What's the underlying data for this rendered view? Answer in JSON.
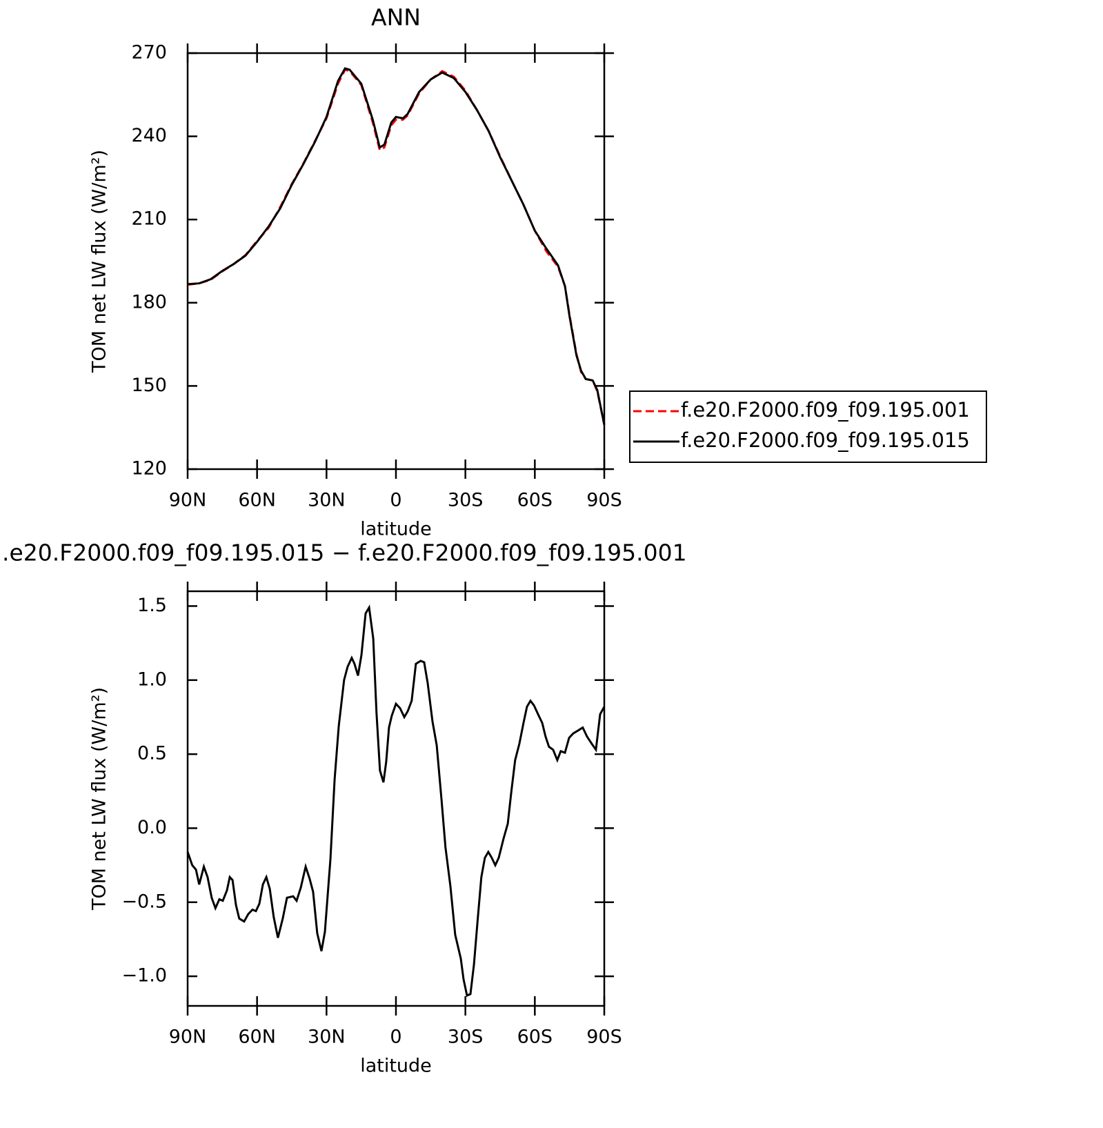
{
  "chart_data": [
    {
      "type": "line",
      "title": "ANN",
      "xlabel": "latitude",
      "ylabel": "TOM net LW flux (W/m²)",
      "x": [
        90,
        85,
        80,
        75,
        70,
        65,
        60,
        55,
        50,
        45,
        40,
        35,
        30,
        25,
        22,
        20,
        15,
        10,
        7,
        5,
        2,
        0,
        -3,
        -5,
        -10,
        -15,
        -20,
        -25,
        -30,
        -35,
        -40,
        -45,
        -50,
        -55,
        -60,
        -65,
        -70,
        -73,
        -75,
        -78,
        -80,
        -82,
        -85,
        -87,
        -90
      ],
      "series": [
        {
          "name": "f.e20.F2000.f09_f09.195.001",
          "color": "#ff0000",
          "dash": true,
          "values": [
            186.5,
            187,
            188.3,
            191.3,
            194,
            197.2,
            202.3,
            207,
            214.5,
            222.8,
            230.2,
            238.3,
            246.5,
            259,
            264,
            263.5,
            258.5,
            245,
            235,
            236,
            244,
            246,
            246,
            247.5,
            255.5,
            260.5,
            263.5,
            261.5,
            256.5,
            249.5,
            242,
            232.8,
            224,
            215.5,
            206,
            198.5,
            193,
            186,
            175.5,
            161.5,
            155,
            152.5,
            152,
            148,
            136
          ]
        },
        {
          "name": "f.e20.F2000.f09_f09.195.015",
          "color": "#000000",
          "dash": false,
          "values": [
            186.7,
            187,
            188.5,
            191.5,
            194,
            197,
            202,
            207.5,
            214,
            222.5,
            230,
            238,
            247,
            260,
            264.5,
            264,
            259,
            246,
            236,
            237,
            245,
            247,
            246.5,
            248,
            256,
            260.5,
            263,
            261,
            256,
            249.5,
            242,
            232.5,
            224,
            215.5,
            206,
            199.5,
            193.5,
            186,
            175,
            161,
            155.5,
            152.5,
            152,
            148.5,
            136
          ]
        }
      ],
      "xlim": [
        90,
        -90
      ],
      "xticks": [
        {
          "value": 90,
          "label": "90N"
        },
        {
          "value": 60,
          "label": "60N"
        },
        {
          "value": 30,
          "label": "30N"
        },
        0,
        {
          "value": -30,
          "label": "30S"
        },
        {
          "value": -60,
          "label": "60S"
        },
        {
          "value": -90,
          "label": "90S"
        }
      ],
      "ylim": [
        120,
        270
      ],
      "yticks": [
        120,
        150,
        180,
        210,
        240,
        270
      ],
      "legend": "right"
    },
    {
      "type": "line",
      "title": ".e20.F2000.f09_f09.195.015 − f.e20.F2000.f09_f09.195.001",
      "xlabel": "latitude",
      "ylabel": "TOM net LW flux (W/m²)",
      "x": [
        90,
        88,
        86.4,
        85,
        83,
        81.4,
        79.6,
        78,
        76.3,
        74.8,
        73,
        71.8,
        70.6,
        69.1,
        67.7,
        65.6,
        63.8,
        62,
        60.5,
        59,
        57.5,
        56,
        54.5,
        52.8,
        51,
        48.9,
        47.1,
        44.4,
        42.9,
        41.1,
        39,
        37.3,
        35.8,
        34,
        32.2,
        30.7,
        28.3,
        26.5,
        24.7,
        22.4,
        20.9,
        19.1,
        17.9,
        16.4,
        14.9,
        13.1,
        11.6,
        9.8,
        8.4,
        6.9,
        5.4,
        4.2,
        3,
        1.8,
        0,
        -1.8,
        -3.6,
        -5.1,
        -6.8,
        -8.6,
        -10.7,
        -12.2,
        -13.7,
        -15.8,
        -17.6,
        -19.7,
        -21.4,
        -23.5,
        -25.6,
        -28,
        -29.2,
        -30.7,
        -32.2,
        -33.7,
        -35.4,
        -36.9,
        -38.4,
        -39.9,
        -41.4,
        -42.9,
        -44.4,
        -46.5,
        -48.3,
        -49.8,
        -51.5,
        -53.3,
        -55.1,
        -56.6,
        -58.1,
        -59.6,
        -61.4,
        -63.2,
        -64.6,
        -66.1,
        -67.9,
        -69.7,
        -71.2,
        -73,
        -74.8,
        -76.6,
        -78.7,
        -80.7,
        -82.5,
        -84.6,
        -86.4,
        -88.2,
        -90
      ],
      "series": [
        {
          "color": "#000000",
          "dash": false,
          "values": [
            -0.16,
            -0.25,
            -0.28,
            -0.38,
            -0.26,
            -0.33,
            -0.47,
            -0.54,
            -0.48,
            -0.49,
            -0.42,
            -0.33,
            -0.35,
            -0.52,
            -0.61,
            -0.63,
            -0.58,
            -0.55,
            -0.56,
            -0.51,
            -0.38,
            -0.33,
            -0.41,
            -0.6,
            -0.74,
            -0.61,
            -0.47,
            -0.46,
            -0.49,
            -0.4,
            -0.26,
            -0.34,
            -0.43,
            -0.71,
            -0.83,
            -0.7,
            -0.21,
            0.33,
            0.69,
            1.0,
            1.09,
            1.15,
            1.11,
            1.03,
            1.17,
            1.45,
            1.49,
            1.28,
            0.78,
            0.39,
            0.31,
            0.45,
            0.68,
            0.76,
            0.84,
            0.81,
            0.75,
            0.79,
            0.86,
            1.11,
            1.13,
            1.12,
            0.98,
            0.72,
            0.56,
            0.19,
            -0.13,
            -0.39,
            -0.72,
            -0.88,
            -1.02,
            -1.13,
            -1.12,
            -0.92,
            -0.6,
            -0.33,
            -0.2,
            -0.16,
            -0.2,
            -0.25,
            -0.2,
            -0.07,
            0.03,
            0.24,
            0.46,
            0.57,
            0.71,
            0.82,
            0.86,
            0.83,
            0.77,
            0.71,
            0.62,
            0.55,
            0.53,
            0.46,
            0.52,
            0.51,
            0.61,
            0.64,
            0.66,
            0.68,
            0.62,
            0.57,
            0.53,
            0.77,
            0.82
          ]
        }
      ],
      "xlim": [
        90,
        -90
      ],
      "xticks": [
        {
          "value": 90,
          "label": "90N"
        },
        {
          "value": 60,
          "label": "60N"
        },
        {
          "value": 30,
          "label": "30N"
        },
        0,
        {
          "value": -30,
          "label": "30S"
        },
        {
          "value": -60,
          "label": "60S"
        },
        {
          "value": -90,
          "label": "90S"
        }
      ],
      "ylim": [
        -1.2,
        1.6
      ],
      "yticks": [
        {
          "value": -1.0,
          "label": "−1.0"
        },
        {
          "value": -0.5,
          "label": "−0.5"
        },
        {
          "value": 0,
          "label": "0.0"
        },
        {
          "value": 0.5,
          "label": "0.5"
        },
        {
          "value": 1.0,
          "label": "1.0"
        },
        {
          "value": 1.5,
          "label": "1.5"
        }
      ]
    }
  ]
}
